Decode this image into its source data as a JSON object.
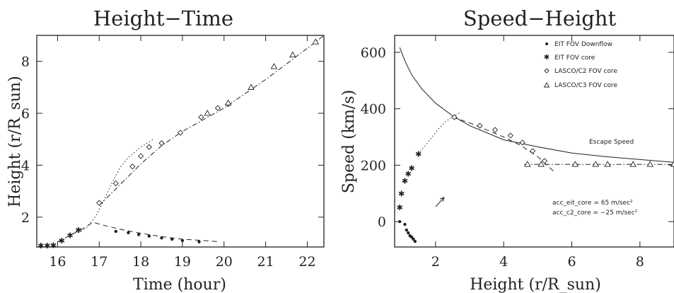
{
  "chart_data": [
    {
      "type": "scatter",
      "title": "Height−Time",
      "xlabel": "Time (hour)",
      "ylabel": "Height (r/R_sun)",
      "xlim": [
        15.5,
        22.4
      ],
      "ylim": [
        0.85,
        9.0
      ],
      "xticks": [
        "16",
        "17",
        "18",
        "19",
        "20",
        "21",
        "22"
      ],
      "xtick_values": [
        16,
        17,
        18,
        19,
        20,
        21,
        22
      ],
      "yticks": [
        "2",
        "4",
        "6",
        "8"
      ],
      "ytick_values": [
        2,
        4,
        6,
        8
      ],
      "grid": false,
      "series": [
        {
          "marker": "dot",
          "x": [
            17.4,
            17.7,
            17.95,
            18.2,
            18.5,
            18.75,
            19.0,
            19.4
          ],
          "y": [
            1.45,
            1.4,
            1.33,
            1.27,
            1.2,
            1.15,
            1.1,
            1.05
          ]
        },
        {
          "marker": "star",
          "x": [
            15.6,
            15.75,
            15.9,
            16.1,
            16.3,
            16.5
          ],
          "y": [
            0.9,
            0.9,
            0.92,
            1.1,
            1.3,
            1.5
          ]
        },
        {
          "marker": "diamond",
          "x": [
            17.0,
            17.4,
            17.8,
            18.0,
            18.2,
            18.5,
            18.95,
            19.45,
            19.85,
            20.1
          ],
          "y": [
            2.55,
            3.3,
            3.95,
            4.35,
            4.7,
            4.85,
            5.25,
            5.85,
            6.2,
            6.35
          ]
        },
        {
          "marker": "triangle",
          "x": [
            19.6,
            20.1,
            20.65,
            21.2,
            21.65,
            22.2
          ],
          "y": [
            6.0,
            6.4,
            7.0,
            7.8,
            8.25,
            8.75
          ]
        }
      ],
      "lines": [
        {
          "style": "dashed",
          "x": [
            16.0,
            16.3,
            16.6,
            16.85,
            17.2,
            17.6,
            18.0,
            18.5,
            19.0,
            19.5,
            19.9
          ],
          "y": [
            1.05,
            1.3,
            1.55,
            1.8,
            1.65,
            1.5,
            1.38,
            1.25,
            1.15,
            1.1,
            1.05
          ]
        },
        {
          "style": "dotted",
          "x": [
            16.5,
            16.7,
            16.9,
            17.1,
            17.3,
            17.5,
            17.7,
            18.0,
            18.3
          ],
          "y": [
            1.4,
            1.6,
            2.0,
            2.6,
            3.3,
            3.9,
            4.3,
            4.7,
            5.0
          ]
        },
        {
          "style": "dash-dot",
          "x": [
            17.0,
            17.5,
            18.0,
            18.5,
            19.0,
            19.5,
            20.0,
            20.5,
            21.0,
            21.5,
            22.0,
            22.4
          ],
          "y": [
            2.45,
            3.25,
            4.05,
            4.75,
            5.3,
            5.75,
            6.2,
            6.75,
            7.3,
            7.9,
            8.5,
            9.0
          ]
        }
      ]
    },
    {
      "type": "scatter",
      "title": "Speed−Height",
      "xlabel": "Height (r/R_sun)",
      "ylabel": "Speed (km/s)",
      "xlim": [
        0.8,
        9.0
      ],
      "ylim": [
        -90,
        660
      ],
      "xticks": [
        "2",
        "4",
        "6",
        "8"
      ],
      "xtick_values": [
        2,
        4,
        6,
        8
      ],
      "yticks": [
        "0",
        "200",
        "400",
        "600"
      ],
      "ytick_values": [
        0,
        200,
        400,
        600
      ],
      "grid": false,
      "legend_position": "top-right",
      "legend": [
        {
          "marker": "dot",
          "label": "EIT FOV Downflow"
        },
        {
          "marker": "star",
          "label": "EIT FOV core"
        },
        {
          "marker": "diamond",
          "label": "LASCO/C2 FOV core"
        },
        {
          "marker": "triangle",
          "label": "LASCO/C3 FOV core"
        }
      ],
      "annotations": {
        "escape": "Escape Speed",
        "acc1": "acc_eit_core = 65 m/sec²",
        "acc2": "acc_c2_core = −25 m/sec²"
      },
      "series": [
        {
          "marker": "dot",
          "x": [
            0.95,
            1.1,
            1.15,
            1.2,
            1.25,
            1.3,
            1.35,
            1.4
          ],
          "y": [
            0,
            -10,
            -30,
            -40,
            -50,
            -55,
            -62,
            -70
          ]
        },
        {
          "marker": "star",
          "x": [
            0.95,
            1.0,
            1.1,
            1.2,
            1.3,
            1.5
          ],
          "y": [
            50,
            100,
            145,
            170,
            190,
            240
          ]
        },
        {
          "marker": "diamond",
          "x": [
            2.55,
            3.3,
            3.75,
            4.2,
            4.55,
            4.85,
            5.2
          ],
          "y": [
            370,
            340,
            325,
            305,
            280,
            250,
            215
          ]
        },
        {
          "marker": "triangle",
          "x": [
            4.7,
            5.1,
            6.1,
            6.7,
            7.05,
            7.8,
            8.3,
            9.0
          ],
          "y": [
            203,
            203,
            203,
            203,
            203,
            203,
            203,
            203
          ]
        }
      ],
      "lines": [
        {
          "style": "solid",
          "x": [
            0.95,
            1.1,
            1.3,
            1.6,
            2.0,
            2.5,
            3.0,
            3.5,
            4.0,
            5.0,
            6.0,
            7.0,
            8.0,
            9.0
          ],
          "y": [
            617,
            570,
            520,
            470,
            420,
            375,
            340,
            315,
            290,
            265,
            243,
            230,
            220,
            210
          ]
        },
        {
          "style": "dotted",
          "x": [
            1.5,
            1.7,
            1.9,
            2.1,
            2.3,
            2.55,
            2.7
          ],
          "y": [
            240,
            270,
            300,
            330,
            355,
            375,
            385
          ]
        },
        {
          "style": "dashed",
          "x": [
            2.5,
            3.0,
            3.5,
            4.0,
            4.5,
            5.0,
            5.5
          ],
          "y": [
            370,
            350,
            325,
            300,
            270,
            230,
            175
          ]
        },
        {
          "style": "dash-dot",
          "x": [
            4.6,
            5.5,
            6.5,
            7.5,
            8.5,
            9.0
          ],
          "y": [
            203,
            203,
            203,
            203,
            203,
            203
          ]
        }
      ]
    }
  ]
}
